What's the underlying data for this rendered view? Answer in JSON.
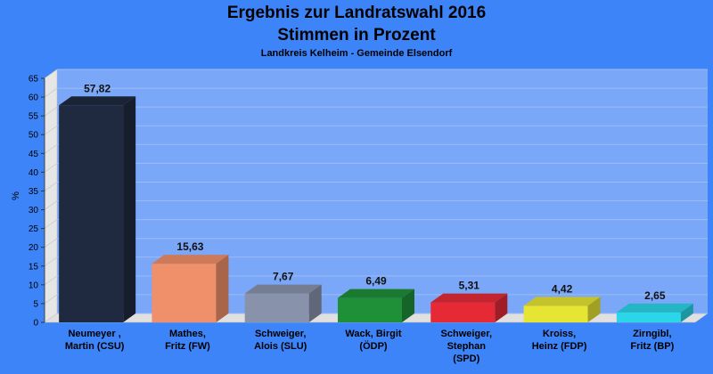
{
  "chart_data": {
    "type": "bar",
    "title": "Ergebnis zur Landratswahl 2016",
    "subtitle": "Stimmen in Prozent",
    "subsubtitle": "Landkreis Kelheim - Gemeinde Elsendorf",
    "ylabel": "%",
    "ylim": [
      0,
      65
    ],
    "yticks": [
      0,
      5,
      10,
      15,
      20,
      25,
      30,
      35,
      40,
      45,
      50,
      55,
      60,
      65
    ],
    "grid": true,
    "categories": [
      [
        "Neumeyer ,",
        "Martin (CSU)"
      ],
      [
        "Mathes,",
        "Fritz (FW)"
      ],
      [
        "Schweiger,",
        "Alois (SLU)"
      ],
      [
        "Wack, Birgit",
        "(ÖDP)"
      ],
      [
        "Schweiger,",
        "Stephan",
        "(SPD)"
      ],
      [
        "Kroiss,",
        "Heinz (FDP)"
      ],
      [
        "Zirngibl,",
        "Fritz (BP)"
      ]
    ],
    "values": [
      57.82,
      15.63,
      7.67,
      6.49,
      5.31,
      4.42,
      2.65
    ],
    "value_labels": [
      "57,82",
      "15,63",
      "7,67",
      "6,49",
      "5,31",
      "4,42",
      "2,65"
    ],
    "colors": [
      "#1f2a40",
      "#f0906a",
      "#8893ab",
      "#1f8f38",
      "#e52a36",
      "#e7e534",
      "#2ad6e8"
    ]
  }
}
